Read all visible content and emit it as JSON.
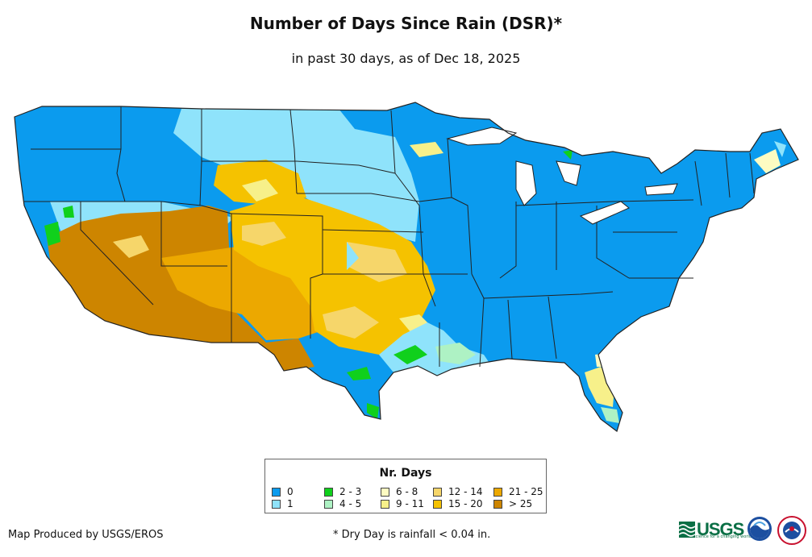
{
  "title": "Number of Days Since Rain (DSR)*",
  "subtitle": "in past 30 days, as of Dec 18, 2025",
  "legend": {
    "title": "Nr. Days",
    "items": [
      {
        "label": "0",
        "color": "#0b9bee"
      },
      {
        "label": "1",
        "color": "#8fe3fb"
      },
      {
        "label": "2 - 3",
        "color": "#10d01c"
      },
      {
        "label": "4 - 5",
        "color": "#aef2c4"
      },
      {
        "label": "6 - 8",
        "color": "#fdfbc2"
      },
      {
        "label": "9 - 11",
        "color": "#f7f08a"
      },
      {
        "label": "12 - 14",
        "color": "#f6d66a"
      },
      {
        "label": "15 - 20",
        "color": "#f5c200"
      },
      {
        "label": "21 - 25",
        "color": "#eca800"
      },
      {
        "label": "> 25",
        "color": "#cd8500"
      }
    ]
  },
  "credit": "Map Produced by USGS/EROS",
  "footnote": "* Dry Day is rainfall < 0.04 in.",
  "logos": {
    "usgs_text": "USGS",
    "usgs_tagline": "science for a changing world",
    "agencies": [
      "usgs",
      "noaa",
      "nws"
    ]
  }
}
